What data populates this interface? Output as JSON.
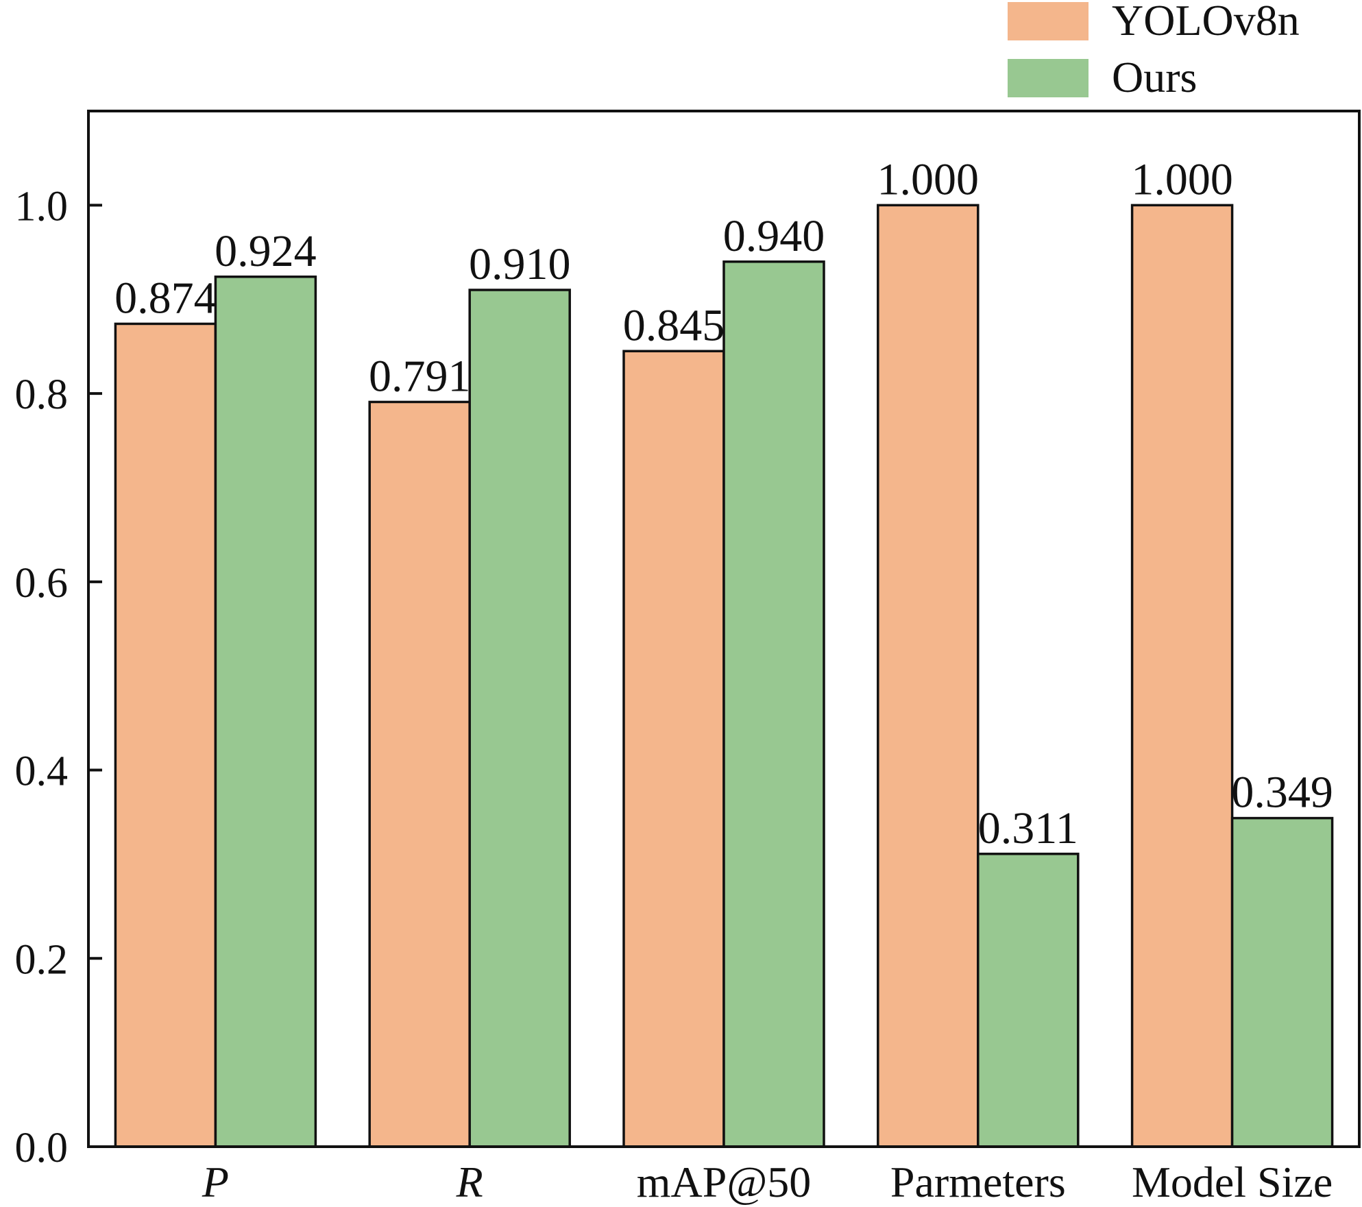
{
  "chart_data": {
    "type": "bar",
    "title": "",
    "xlabel": "",
    "ylabel": "",
    "ylim": [
      0,
      1.1
    ],
    "yticks": [
      0.0,
      0.2,
      0.4,
      0.6,
      0.8,
      1.0
    ],
    "ytick_labels": [
      "0.0",
      "0.2",
      "0.4",
      "0.6",
      "0.8",
      "1.0"
    ],
    "categories": [
      "P",
      "R",
      "mAP@50",
      "Parmeters",
      "Model Size"
    ],
    "category_italic": [
      true,
      true,
      false,
      false,
      false
    ],
    "series": [
      {
        "name": "YOLOv8n",
        "color": "#f4b68c",
        "values": [
          0.874,
          0.791,
          0.845,
          1.0,
          1.0
        ],
        "value_labels": [
          "0.874",
          "0.791",
          "0.845",
          "1.000",
          "1.000"
        ]
      },
      {
        "name": "Ours",
        "color": "#98c891",
        "values": [
          0.924,
          0.91,
          0.94,
          0.311,
          0.349
        ],
        "value_labels": [
          "0.924",
          "0.910",
          "0.940",
          "0.311",
          "0.349"
        ]
      }
    ],
    "legend_position": "top-right, above plot",
    "grid": false
  }
}
